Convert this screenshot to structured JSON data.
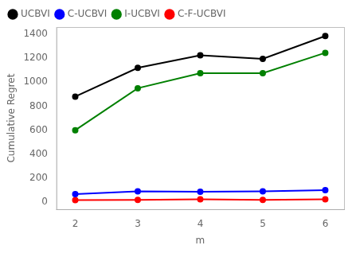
{
  "chart_data": {
    "type": "line",
    "x": [
      2,
      3,
      4,
      5,
      6
    ],
    "series": [
      {
        "name": "UCBVI",
        "color": "black",
        "values": [
          880,
          1120,
          1225,
          1195,
          1385
        ]
      },
      {
        "name": "C-UCBVI",
        "color": "blue",
        "values": [
          68,
          90,
          87,
          90,
          100
        ]
      },
      {
        "name": "I-UCBVI",
        "color": "green",
        "values": [
          600,
          950,
          1075,
          1075,
          1245
        ]
      },
      {
        "name": "C-F-UCBVI",
        "color": "red",
        "values": [
          18,
          20,
          25,
          20,
          25
        ]
      }
    ],
    "xlabel": "m",
    "ylabel": "Cumulative Regret",
    "xlim": [
      1.7,
      6.3
    ],
    "ylim": [
      -60,
      1460
    ],
    "xticks": [
      2,
      3,
      4,
      5,
      6
    ],
    "yticks": [
      0,
      200,
      400,
      600,
      800,
      1000,
      1200,
      1400
    ],
    "grid": false,
    "legend": "upper left",
    "marker": "circle"
  }
}
